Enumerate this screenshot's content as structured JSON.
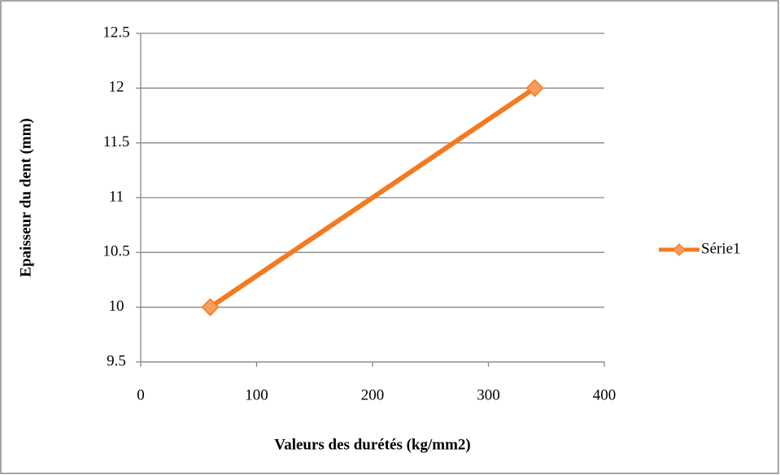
{
  "chart_data": {
    "type": "line",
    "xlabel": "Valeurs des durétés (kg/mm2)",
    "ylabel": "Epaisseur du dent (mm)",
    "x": [
      60,
      340
    ],
    "series": [
      {
        "name": "Série1",
        "color": "#f47a20",
        "values": [
          10,
          12
        ]
      }
    ],
    "xlim": [
      0,
      400
    ],
    "xticks": [
      0,
      100,
      200,
      300,
      400
    ],
    "ylim": [
      9.5,
      12.5
    ],
    "yticks": [
      9.5,
      10,
      10.5,
      11,
      11.5,
      12,
      12.5
    ],
    "grid": true,
    "legend": "right"
  }
}
